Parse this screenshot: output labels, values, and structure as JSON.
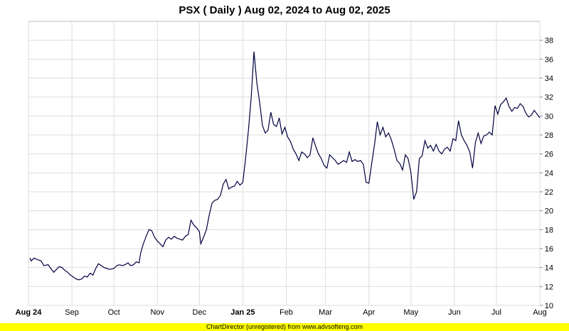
{
  "footer": {
    "text": "ChartDirector (unregistered) from www.advsofteng.com"
  },
  "chart_data": {
    "type": "line",
    "title": "PSX ( Daily ) Aug 02, 2024 to Aug 02, 2025",
    "xlabel": "",
    "ylabel": "",
    "ylim": [
      10,
      40
    ],
    "y_ticks": [
      10,
      12,
      14,
      16,
      18,
      20,
      22,
      24,
      26,
      28,
      30,
      32,
      34,
      36,
      38
    ],
    "x_range": [
      "2024-08-02",
      "2025-08-02"
    ],
    "x_ticks": [
      {
        "date": "2024-08-01",
        "label": "Aug 24",
        "bold": true
      },
      {
        "date": "2024-09-01",
        "label": "Sep",
        "bold": false
      },
      {
        "date": "2024-10-01",
        "label": "Oct",
        "bold": false
      },
      {
        "date": "2024-11-01",
        "label": "Nov",
        "bold": false
      },
      {
        "date": "2024-12-01",
        "label": "Dec",
        "bold": false
      },
      {
        "date": "2025-01-01",
        "label": "Jan 25",
        "bold": true
      },
      {
        "date": "2025-02-01",
        "label": "Feb",
        "bold": false
      },
      {
        "date": "2025-03-01",
        "label": "Mar",
        "bold": false
      },
      {
        "date": "2025-04-01",
        "label": "Apr",
        "bold": false
      },
      {
        "date": "2025-05-01",
        "label": "May",
        "bold": false
      },
      {
        "date": "2025-06-01",
        "label": "Jun",
        "bold": false
      },
      {
        "date": "2025-07-01",
        "label": "Jul",
        "bold": false
      },
      {
        "date": "2025-08-01",
        "label": "Aug",
        "bold": false
      }
    ],
    "grid": true,
    "line_color": "#000040",
    "series": [
      {
        "points": [
          [
            "2024-08-02",
            15.0
          ],
          [
            "2024-08-03",
            14.7
          ],
          [
            "2024-08-05",
            15.0
          ],
          [
            "2024-08-08",
            14.8
          ],
          [
            "2024-08-10",
            14.7
          ],
          [
            "2024-08-12",
            14.2
          ],
          [
            "2024-08-15",
            14.3
          ],
          [
            "2024-08-17",
            13.9
          ],
          [
            "2024-08-19",
            13.5
          ],
          [
            "2024-08-21",
            13.8
          ],
          [
            "2024-08-23",
            14.1
          ],
          [
            "2024-08-25",
            14.0
          ],
          [
            "2024-08-27",
            13.7
          ],
          [
            "2024-08-29",
            13.5
          ],
          [
            "2024-08-31",
            13.2
          ],
          [
            "2024-09-02",
            13.0
          ],
          [
            "2024-09-04",
            12.8
          ],
          [
            "2024-09-06",
            12.7
          ],
          [
            "2024-09-08",
            12.8
          ],
          [
            "2024-09-10",
            13.1
          ],
          [
            "2024-09-12",
            13.0
          ],
          [
            "2024-09-14",
            13.4
          ],
          [
            "2024-09-16",
            13.2
          ],
          [
            "2024-09-18",
            13.9
          ],
          [
            "2024-09-20",
            14.4
          ],
          [
            "2024-09-22",
            14.2
          ],
          [
            "2024-09-24",
            14.0
          ],
          [
            "2024-09-26",
            13.9
          ],
          [
            "2024-09-28",
            13.8
          ],
          [
            "2024-10-01",
            13.9
          ],
          [
            "2024-10-03",
            14.2
          ],
          [
            "2024-10-05",
            14.3
          ],
          [
            "2024-10-07",
            14.2
          ],
          [
            "2024-10-09",
            14.3
          ],
          [
            "2024-10-11",
            14.5
          ],
          [
            "2024-10-13",
            14.2
          ],
          [
            "2024-10-15",
            14.3
          ],
          [
            "2024-10-17",
            14.6
          ],
          [
            "2024-10-19",
            14.5
          ],
          [
            "2024-10-20",
            15.5
          ],
          [
            "2024-10-22",
            16.5
          ],
          [
            "2024-10-24",
            17.3
          ],
          [
            "2024-10-26",
            18.0
          ],
          [
            "2024-10-28",
            17.9
          ],
          [
            "2024-10-30",
            17.2
          ],
          [
            "2024-11-01",
            16.8
          ],
          [
            "2024-11-03",
            16.5
          ],
          [
            "2024-11-05",
            16.2
          ],
          [
            "2024-11-07",
            16.9
          ],
          [
            "2024-11-09",
            17.2
          ],
          [
            "2024-11-11",
            17.0
          ],
          [
            "2024-11-13",
            17.3
          ],
          [
            "2024-11-15",
            17.1
          ],
          [
            "2024-11-17",
            17.0
          ],
          [
            "2024-11-19",
            16.9
          ],
          [
            "2024-11-21",
            17.3
          ],
          [
            "2024-11-23",
            17.5
          ],
          [
            "2024-11-25",
            19.0
          ],
          [
            "2024-11-27",
            18.5
          ],
          [
            "2024-11-29",
            18.2
          ],
          [
            "2024-12-01",
            17.8
          ],
          [
            "2024-12-02",
            16.5
          ],
          [
            "2024-12-04",
            17.2
          ],
          [
            "2024-12-06",
            18.0
          ],
          [
            "2024-12-08",
            19.5
          ],
          [
            "2024-12-10",
            20.8
          ],
          [
            "2024-12-12",
            21.1
          ],
          [
            "2024-12-14",
            21.2
          ],
          [
            "2024-12-16",
            21.6
          ],
          [
            "2024-12-18",
            22.8
          ],
          [
            "2024-12-20",
            23.3
          ],
          [
            "2024-12-22",
            22.3
          ],
          [
            "2024-12-24",
            22.5
          ],
          [
            "2024-12-26",
            22.6
          ],
          [
            "2024-12-28",
            23.1
          ],
          [
            "2024-12-30",
            22.7
          ],
          [
            "2025-01-01",
            23.0
          ],
          [
            "2025-01-03",
            25.5
          ],
          [
            "2025-01-05",
            28.5
          ],
          [
            "2025-01-07",
            32.0
          ],
          [
            "2025-01-09",
            36.8
          ],
          [
            "2025-01-11",
            33.5
          ],
          [
            "2025-01-13",
            31.5
          ],
          [
            "2025-01-15",
            29.0
          ],
          [
            "2025-01-17",
            28.2
          ],
          [
            "2025-01-19",
            28.5
          ],
          [
            "2025-01-21",
            30.4
          ],
          [
            "2025-01-23",
            29.1
          ],
          [
            "2025-01-25",
            28.9
          ],
          [
            "2025-01-27",
            29.8
          ],
          [
            "2025-01-29",
            28.1
          ],
          [
            "2025-01-31",
            28.8
          ],
          [
            "2025-02-02",
            27.8
          ],
          [
            "2025-02-04",
            27.3
          ],
          [
            "2025-02-06",
            26.5
          ],
          [
            "2025-02-08",
            26.0
          ],
          [
            "2025-02-10",
            25.3
          ],
          [
            "2025-02-12",
            26.2
          ],
          [
            "2025-02-14",
            26.0
          ],
          [
            "2025-02-16",
            25.6
          ],
          [
            "2025-02-18",
            25.9
          ],
          [
            "2025-02-20",
            27.7
          ],
          [
            "2025-02-22",
            26.8
          ],
          [
            "2025-02-24",
            26.0
          ],
          [
            "2025-02-26",
            25.5
          ],
          [
            "2025-02-28",
            24.8
          ],
          [
            "2025-03-02",
            24.5
          ],
          [
            "2025-03-04",
            25.9
          ],
          [
            "2025-03-06",
            25.6
          ],
          [
            "2025-03-08",
            25.3
          ],
          [
            "2025-03-10",
            24.9
          ],
          [
            "2025-03-12",
            25.1
          ],
          [
            "2025-03-14",
            25.3
          ],
          [
            "2025-03-16",
            25.1
          ],
          [
            "2025-03-18",
            26.2
          ],
          [
            "2025-03-20",
            25.2
          ],
          [
            "2025-03-22",
            25.4
          ],
          [
            "2025-03-24",
            25.2
          ],
          [
            "2025-03-26",
            25.3
          ],
          [
            "2025-03-28",
            24.9
          ],
          [
            "2025-03-30",
            23.0
          ],
          [
            "2025-04-01",
            22.9
          ],
          [
            "2025-04-03",
            25.0
          ],
          [
            "2025-04-05",
            27.0
          ],
          [
            "2025-04-07",
            29.4
          ],
          [
            "2025-04-09",
            28.0
          ],
          [
            "2025-04-11",
            28.8
          ],
          [
            "2025-04-13",
            27.8
          ],
          [
            "2025-04-15",
            28.2
          ],
          [
            "2025-04-17",
            27.5
          ],
          [
            "2025-04-19",
            26.5
          ],
          [
            "2025-04-21",
            25.3
          ],
          [
            "2025-04-23",
            25.0
          ],
          [
            "2025-04-25",
            24.3
          ],
          [
            "2025-04-27",
            25.9
          ],
          [
            "2025-04-29",
            25.5
          ],
          [
            "2025-05-01",
            24.0
          ],
          [
            "2025-05-03",
            21.2
          ],
          [
            "2025-05-05",
            22.0
          ],
          [
            "2025-05-07",
            25.5
          ],
          [
            "2025-05-09",
            25.8
          ],
          [
            "2025-05-11",
            27.4
          ],
          [
            "2025-05-13",
            26.6
          ],
          [
            "2025-05-15",
            26.9
          ],
          [
            "2025-05-17",
            26.3
          ],
          [
            "2025-05-19",
            27.0
          ],
          [
            "2025-05-21",
            26.3
          ],
          [
            "2025-05-23",
            26.0
          ],
          [
            "2025-05-25",
            26.5
          ],
          [
            "2025-05-27",
            26.7
          ],
          [
            "2025-05-29",
            26.3
          ],
          [
            "2025-05-31",
            27.6
          ],
          [
            "2025-06-02",
            27.4
          ],
          [
            "2025-06-04",
            29.5
          ],
          [
            "2025-06-06",
            28.0
          ],
          [
            "2025-06-08",
            27.4
          ],
          [
            "2025-06-10",
            26.9
          ],
          [
            "2025-06-12",
            26.2
          ],
          [
            "2025-06-14",
            24.5
          ],
          [
            "2025-06-16",
            27.2
          ],
          [
            "2025-06-18",
            28.2
          ],
          [
            "2025-06-20",
            27.1
          ],
          [
            "2025-06-22",
            27.9
          ],
          [
            "2025-06-24",
            28.0
          ],
          [
            "2025-06-26",
            28.3
          ],
          [
            "2025-06-28",
            28.0
          ],
          [
            "2025-06-30",
            31.1
          ],
          [
            "2025-07-02",
            30.2
          ],
          [
            "2025-07-04",
            31.2
          ],
          [
            "2025-07-06",
            31.5
          ],
          [
            "2025-07-08",
            31.9
          ],
          [
            "2025-07-10",
            31.0
          ],
          [
            "2025-07-12",
            30.5
          ],
          [
            "2025-07-14",
            30.9
          ],
          [
            "2025-07-16",
            30.8
          ],
          [
            "2025-07-18",
            31.3
          ],
          [
            "2025-07-20",
            31.0
          ],
          [
            "2025-07-22",
            30.3
          ],
          [
            "2025-07-24",
            29.9
          ],
          [
            "2025-07-26",
            30.1
          ],
          [
            "2025-07-28",
            30.6
          ],
          [
            "2025-07-30",
            30.2
          ],
          [
            "2025-08-01",
            29.8
          ]
        ]
      }
    ]
  }
}
